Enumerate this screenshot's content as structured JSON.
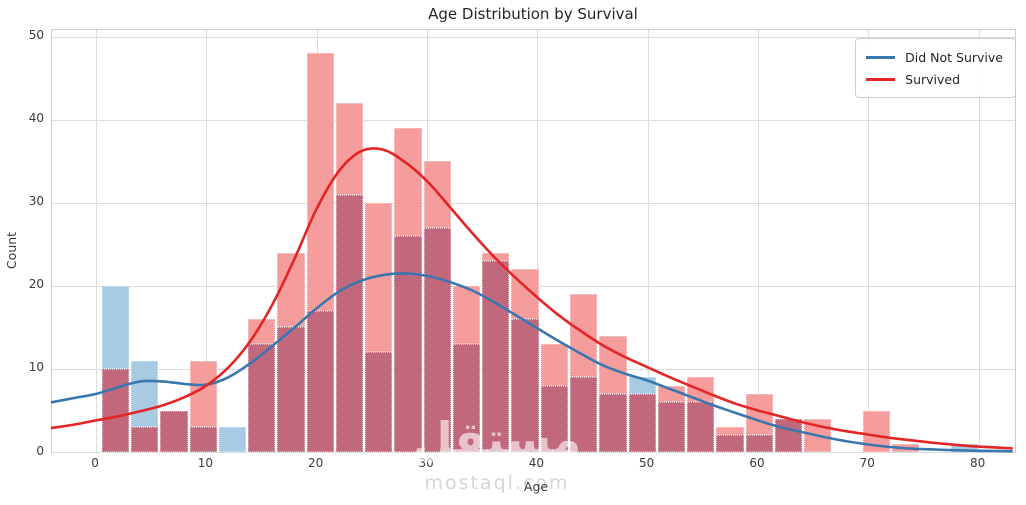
{
  "title": "Age Distribution by Survival",
  "axes": {
    "xlabel": "Age",
    "ylabel": "Count",
    "x_ticks": [
      0,
      10,
      20,
      30,
      40,
      50,
      60,
      70,
      80
    ],
    "y_ticks": [
      0,
      10,
      20,
      30,
      40,
      50
    ]
  },
  "legend": {
    "items": [
      {
        "label": "Did Not Survive",
        "color": "#3a77ae"
      },
      {
        "label": "Survived",
        "color": "#e32526"
      }
    ]
  },
  "watermark": {
    "logo_text": "مستقل",
    "site_text": "mostaql.com"
  },
  "colors": {
    "survived_bar": "#f59c9c",
    "did_not_survive_bar": "#a8cbe4",
    "overlap_bar": "#c2687c",
    "survived_line": "#e32526",
    "did_not_survive_line": "#3a77ae",
    "grid": "#dcdcdc",
    "spine": "#cccccc",
    "text": "#2b2b2b",
    "watermark": "#d6d6d6"
  },
  "chart_data": {
    "type": "histogram+kde",
    "title": "Age Distribution by Survival",
    "xlabel": "Age",
    "ylabel": "Count",
    "xlim": [
      -4.0,
      83.3
    ],
    "ylim": [
      0,
      50.8
    ],
    "grid": true,
    "legend_position": "upper right",
    "bin_width": 2.653,
    "bin_starts": [
      0.42,
      3.07,
      5.73,
      8.38,
      11.03,
      13.68,
      16.34,
      18.99,
      21.64,
      24.29,
      26.95,
      29.6,
      32.25,
      34.91,
      37.56,
      40.21,
      42.87,
      45.52,
      48.17,
      50.82,
      53.48,
      56.13,
      58.78,
      61.44,
      64.09,
      66.74,
      69.4,
      72.05,
      74.7,
      77.36
    ],
    "series": [
      {
        "name": "Did Not Survive",
        "bar_color": "#a8cbe4",
        "line_color": "#3a77ae",
        "counts": [
          20,
          11,
          5,
          3,
          3,
          13,
          15,
          17,
          31,
          12,
          26,
          27,
          13,
          23,
          16,
          8,
          9,
          7,
          9,
          6,
          6,
          2,
          2,
          4,
          0,
          0,
          0,
          0,
          0,
          1
        ],
        "kde": {
          "x": [
            -4,
            -2,
            0,
            2,
            4,
            6,
            8,
            10,
            12,
            14,
            16,
            18,
            20,
            22,
            24,
            26,
            28,
            30,
            32,
            34,
            36,
            38,
            40,
            42,
            44,
            46,
            48,
            50,
            52,
            54,
            56,
            58,
            60,
            62,
            64,
            66,
            68,
            70,
            72,
            74,
            76,
            78,
            80,
            83
          ],
          "y": [
            6.0,
            6.5,
            7.0,
            7.8,
            8.5,
            8.5,
            8.2,
            8.1,
            9.0,
            10.7,
            12.8,
            15.0,
            17.3,
            19.3,
            20.6,
            21.3,
            21.5,
            21.2,
            20.5,
            19.5,
            18.1,
            16.5,
            14.9,
            13.3,
            11.8,
            10.4,
            9.4,
            8.6,
            7.6,
            6.6,
            5.6,
            4.7,
            3.8,
            3.0,
            2.4,
            1.8,
            1.3,
            0.9,
            0.6,
            0.4,
            0.3,
            0.2,
            0.15,
            0.1
          ]
        }
      },
      {
        "name": "Survived",
        "bar_color": "#f59c9c",
        "line_color": "#e32526",
        "counts": [
          10,
          3,
          5,
          11,
          0,
          16,
          24,
          48,
          42,
          30,
          39,
          35,
          20,
          24,
          22,
          13,
          19,
          14,
          7,
          8,
          9,
          3,
          7,
          4,
          4,
          0,
          5,
          1,
          0,
          0
        ],
        "kde": {
          "x": [
            -4,
            -2,
            0,
            2,
            4,
            6,
            8,
            10,
            12,
            14,
            16,
            18,
            20,
            22,
            24,
            26,
            28,
            30,
            32,
            34,
            36,
            38,
            40,
            42,
            44,
            46,
            48,
            50,
            52,
            54,
            56,
            58,
            60,
            62,
            64,
            66,
            68,
            70,
            72,
            74,
            76,
            78,
            80,
            83
          ],
          "y": [
            2.9,
            3.3,
            3.8,
            4.3,
            4.9,
            5.6,
            6.6,
            8.0,
            10.2,
            13.4,
            17.8,
            23.3,
            29.3,
            33.8,
            36.2,
            36.4,
            34.9,
            32.6,
            29.6,
            26.5,
            23.6,
            21.0,
            18.6,
            16.4,
            14.5,
            12.8,
            11.4,
            10.2,
            9.0,
            7.9,
            6.8,
            5.8,
            5.0,
            4.3,
            3.6,
            3.0,
            2.5,
            2.1,
            1.7,
            1.4,
            1.1,
            0.85,
            0.65,
            0.45
          ]
        }
      }
    ],
    "overlap_color": "#c2687c"
  }
}
